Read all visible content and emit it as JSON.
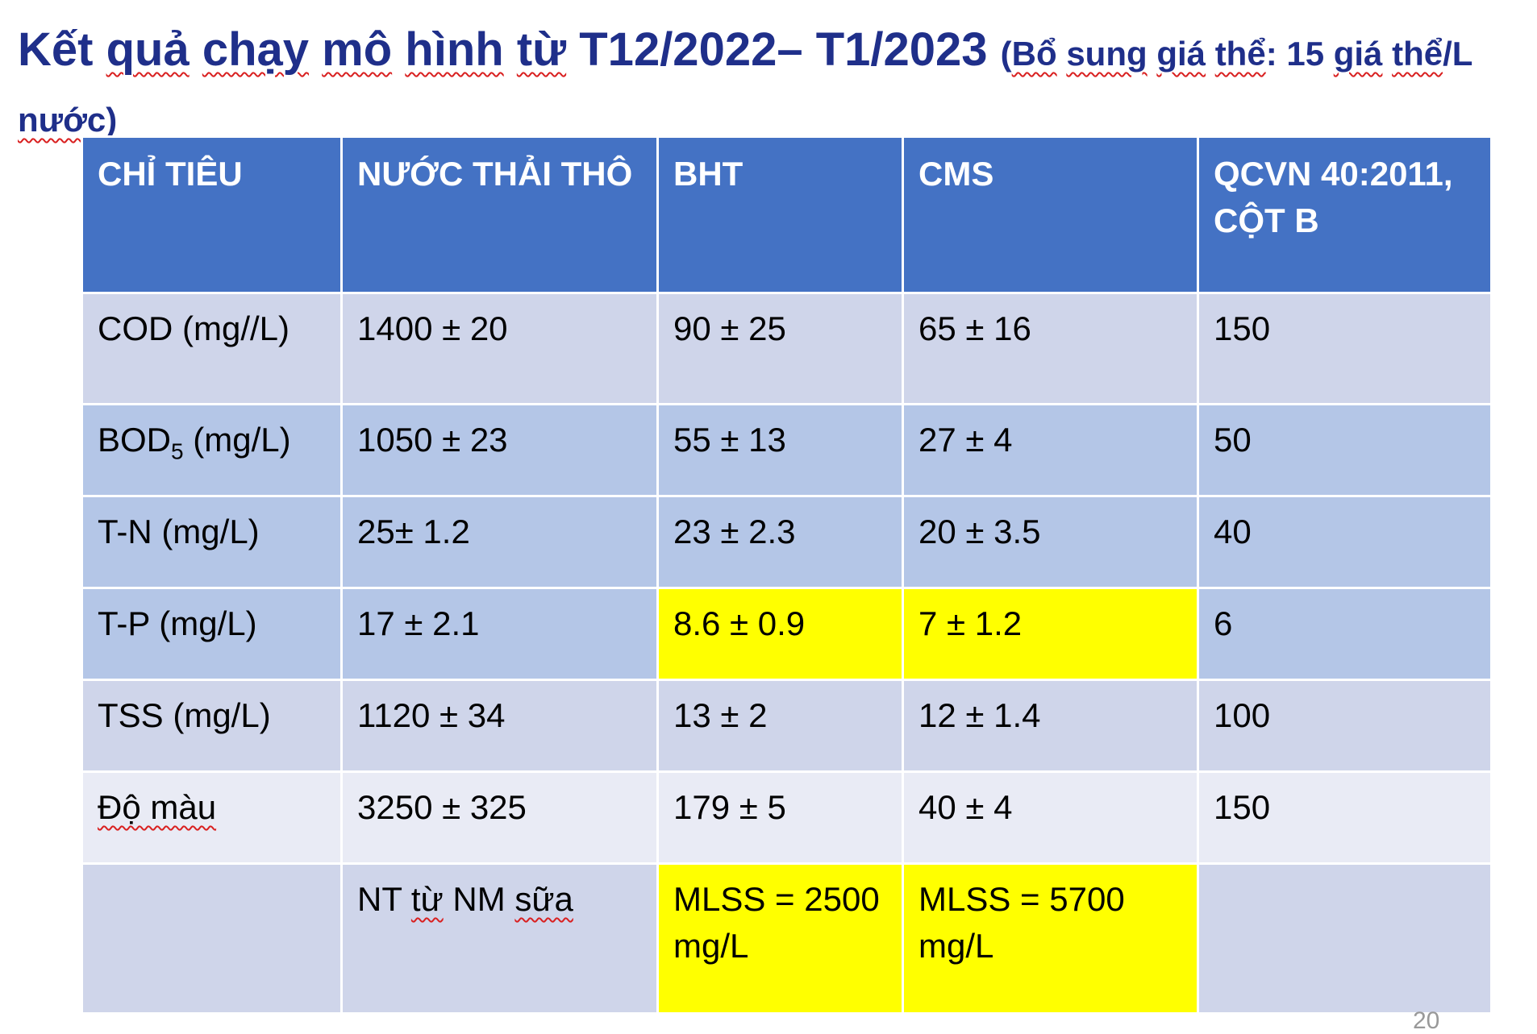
{
  "title": {
    "main_prefix": "Kết ",
    "main_quả": "quả",
    "main_sp1": " ",
    "main_chạy": "chạy",
    "main_sp2": " ",
    "main_mô": "mô",
    "main_sp3": " ",
    "main_hình": "hình",
    "main_sp4": " ",
    "main_từ": "từ",
    "main_suffix": " T12/2022– T1/2023 ",
    "sub_open": "(",
    "sub_bổ": "Bổ",
    "sub_sp1": " ",
    "sub_sung": "sung",
    "sub_sp2": " ",
    "sub_giá": "giá",
    "sub_sp3": " ",
    "sub_thể": "thể",
    "sub_mid": ": 15 ",
    "sub_giá2": "giá",
    "sub_sp4": " ",
    "sub_thể2": "thể",
    "sub_slash": "/L ",
    "sub_nước": "nước",
    "sub_close": ")"
  },
  "table": {
    "headers": [
      "CHỈ TIÊU",
      "NƯỚC THẢI THÔ",
      "BHT",
      "CMS",
      "QCVN 40:2011, CỘT B"
    ],
    "rows": [
      [
        "COD (mg//L)",
        "1400 ± 20",
        "90 ± 25",
        "65 ± 16",
        "150"
      ],
      [
        "BOD",
        "1050 ± 23",
        "55 ± 13",
        "27 ± 4",
        "50"
      ],
      [
        "T-N (mg/L)",
        "25± 1.2",
        "23 ± 2.3",
        "20 ± 3.5",
        "40"
      ],
      [
        "T-P (mg/L)",
        "17 ± 2.1",
        "8.6 ± 0.9",
        "7 ± 1.2",
        "6"
      ],
      [
        "TSS (mg/L)",
        "1120 ± 34",
        "13 ± 2",
        "12 ± 1.4",
        "100"
      ],
      [
        "Độ màu",
        "3250 ± 325",
        "179 ± 5",
        "40 ± 4",
        "150"
      ],
      [
        "",
        "NT từ NM sữa",
        "MLSS = 2500 mg/L",
        "MLSS = 5700 mg/L",
        ""
      ]
    ],
    "bod_sub": "5",
    "bod_unit": " (mg/L)",
    "last_row_parts": {
      "nt": "NT ",
      "tu": "từ",
      "sp": " ",
      "nm": "NM",
      "sp2": " ",
      "sua": "sữa"
    },
    "highlight_color": "#ffff00",
    "header_color": "#4472c4"
  },
  "page_number": "20"
}
